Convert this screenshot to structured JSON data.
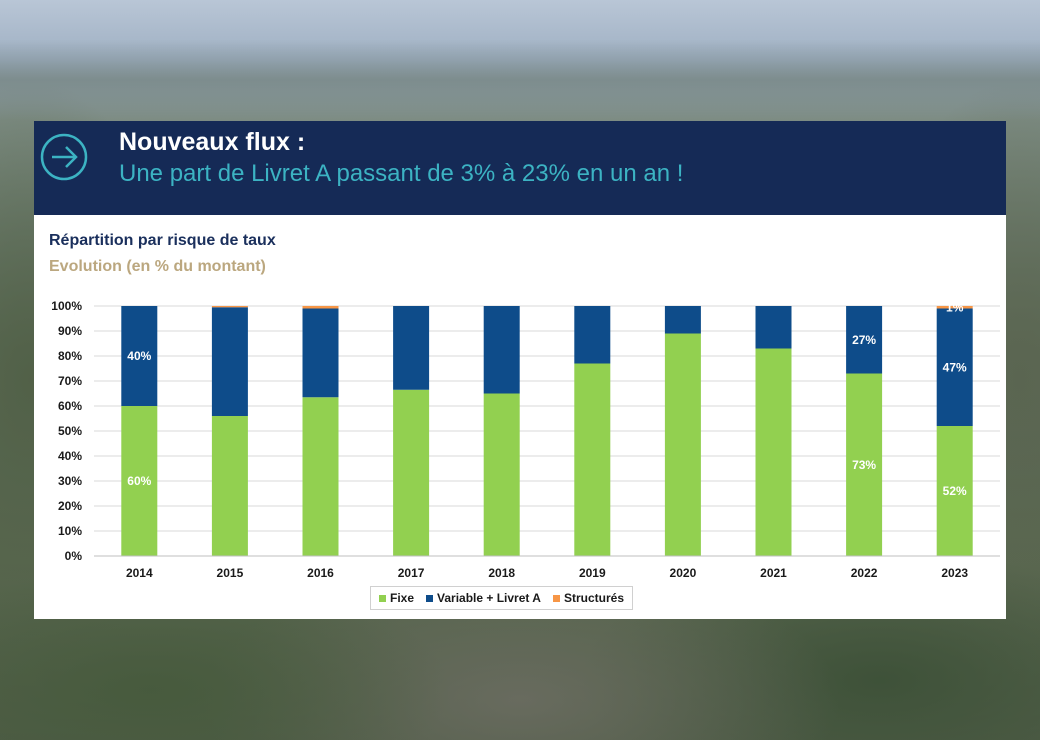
{
  "header": {
    "title": "Nouveaux flux :",
    "subtitle": "Une part de Livret A passant de 3% à 23% en un an !",
    "icon": "arrow-right-circle-icon"
  },
  "chart_data": {
    "type": "bar",
    "stacked": true,
    "title": "Répartition par risque de taux",
    "subtitle": "Evolution (en % du montant)",
    "categories": [
      "2014",
      "2015",
      "2016",
      "2017",
      "2018",
      "2019",
      "2020",
      "2021",
      "2022",
      "2023"
    ],
    "series": [
      {
        "name": "Fixe",
        "color": "#92d050",
        "values": [
          60,
          56,
          63.5,
          66.5,
          65,
          77,
          89,
          83,
          73,
          52
        ],
        "labels": [
          "60%",
          "",
          "",
          "",
          "",
          "",
          "",
          "",
          "73%",
          "52%"
        ]
      },
      {
        "name": "Variable + Livret A",
        "color": "#0e4c8a",
        "values": [
          40,
          43.5,
          35.5,
          33.5,
          35,
          23,
          11,
          17,
          27,
          47
        ],
        "labels": [
          "40%",
          "",
          "",
          "",
          "",
          "",
          "",
          "",
          "27%",
          "47%"
        ]
      },
      {
        "name": "Structurés",
        "color": "#f79646",
        "values": [
          0,
          0.5,
          1,
          0,
          0,
          0,
          0,
          0,
          0,
          1
        ],
        "labels": [
          "",
          "",
          "",
          "",
          "",
          "",
          "",
          "",
          "",
          "1%"
        ]
      }
    ],
    "yticks": [
      "0%",
      "10%",
      "20%",
      "30%",
      "40%",
      "50%",
      "60%",
      "70%",
      "80%",
      "90%",
      "100%"
    ],
    "ylim": [
      0,
      100
    ],
    "grid": true,
    "legend": "bottom"
  }
}
